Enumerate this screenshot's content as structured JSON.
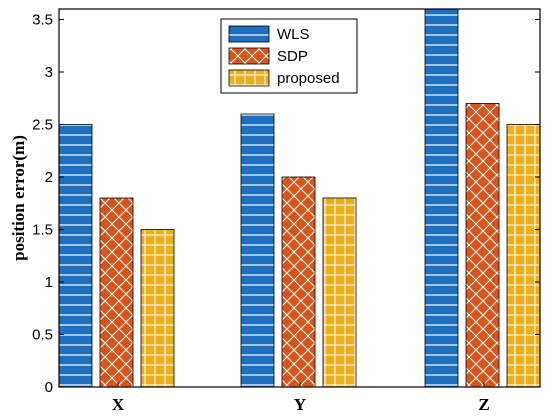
{
  "chart_data": {
    "type": "bar",
    "categories": [
      "X",
      "Y",
      "Z"
    ],
    "series": [
      {
        "name": "WLS",
        "values": [
          2.5,
          2.6,
          3.6
        ],
        "color": "#1f6fc0",
        "pattern": "horizontal-lines"
      },
      {
        "name": "SDP",
        "values": [
          1.8,
          2.0,
          2.7
        ],
        "color": "#d9541a",
        "pattern": "crosshatch"
      },
      {
        "name": "proposed",
        "values": [
          1.5,
          1.8,
          2.5
        ],
        "color": "#ecb01f",
        "pattern": "grid"
      }
    ],
    "title": "",
    "xlabel": "",
    "ylabel": "position error(m)",
    "ylim": [
      0,
      3.6
    ],
    "yticks": [
      0,
      0.5,
      1,
      1.5,
      2,
      2.5,
      3,
      3.5
    ],
    "ytick_labels": [
      "0",
      "0.5",
      "1",
      "1.5",
      "2",
      "2.5",
      "3",
      "3.5"
    ],
    "grid": false,
    "legend_position": "top-center",
    "axis_color": "#000000"
  }
}
